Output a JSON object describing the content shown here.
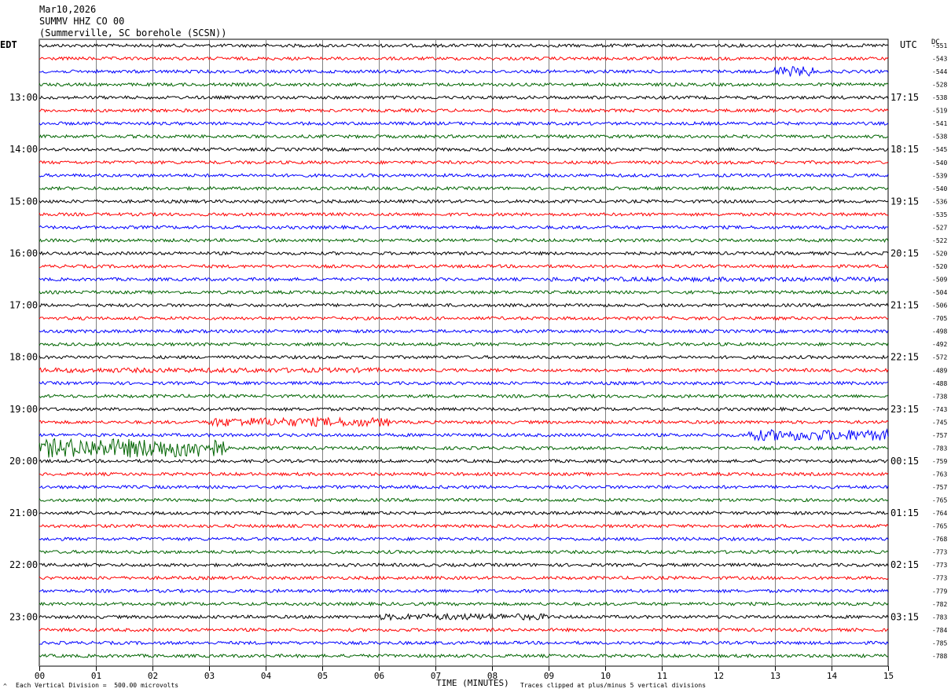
{
  "header": {
    "date": "Mar10,2026",
    "station": "SUMMV HHZ CO 00",
    "location": "(Summerville, SC borehole (SCSN))"
  },
  "left_tz": "EDT",
  "right_tz": "UTC",
  "dc_title": "DC",
  "footer": {
    "scale_note": "Each Vertical Division =  500.00 microvolts",
    "xlabel": "TIME (MINUTES)",
    "clip_note": "Traces clipped at plus/minus 5 vertical divisions",
    "corner_mark": "^"
  },
  "chart_data": {
    "type": "line",
    "xlabel": "TIME (MINUTES)",
    "xlim": [
      0,
      15
    ],
    "x_ticks": [
      "00",
      "01",
      "02",
      "03",
      "04",
      "05",
      "06",
      "07",
      "08",
      "09",
      "10",
      "11",
      "12",
      "13",
      "14",
      "15"
    ],
    "left_hour_labels": [
      "13:00",
      "14:00",
      "15:00",
      "16:00",
      "17:00",
      "18:00",
      "19:00",
      "20:00",
      "21:00",
      "22:00",
      "23:00"
    ],
    "right_hour_labels": [
      "17:15",
      "18:15",
      "19:15",
      "20:15",
      "21:15",
      "22:15",
      "23:15",
      "00:15",
      "01:15",
      "02:15",
      "03:15"
    ],
    "trace_colors": [
      "#000000",
      "#ff0000",
      "#0000ff",
      "#006400"
    ],
    "dc_offsets": [
      -551,
      -543,
      -544,
      -528,
      -538,
      -519,
      -541,
      -538,
      -545,
      -540,
      -539,
      -540,
      -536,
      -535,
      -527,
      -522,
      -520,
      -520,
      -509,
      -504,
      -506,
      -705,
      -498,
      -492,
      -572,
      -489,
      -488,
      -738,
      -743,
      -745,
      -757,
      -783,
      -759,
      -763,
      -757,
      -765,
      -764,
      -765,
      -768,
      -773,
      -773,
      -773,
      -779,
      -782,
      -783,
      -784,
      -785,
      -788
    ],
    "trace_count": 48,
    "events": [
      {
        "trace": 2,
        "start_min": 13.0,
        "end_min": 13.7,
        "amp": 3.2
      },
      {
        "trace": 18,
        "start_min": 9.0,
        "end_min": 15.0,
        "amp": 1.4
      },
      {
        "trace": 25,
        "start_min": 0.0,
        "end_min": 6.0,
        "amp": 1.5
      },
      {
        "trace": 29,
        "start_min": 3.0,
        "end_min": 6.2,
        "amp": 2.8
      },
      {
        "trace": 30,
        "start_min": 12.5,
        "end_min": 15.0,
        "amp": 3.5
      },
      {
        "trace": 31,
        "start_min": 0.0,
        "end_min": 3.3,
        "amp": 6.0
      },
      {
        "trace": 44,
        "start_min": 6.0,
        "end_min": 9.0,
        "amp": 2.0
      }
    ]
  }
}
